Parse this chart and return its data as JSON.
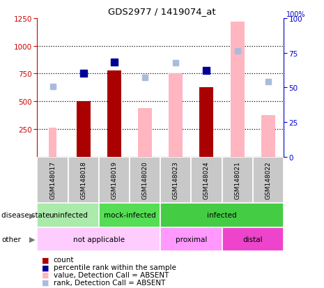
{
  "title": "GDS2977 / 1419074_at",
  "samples": [
    "GSM148017",
    "GSM148018",
    "GSM148019",
    "GSM148020",
    "GSM148023",
    "GSM148024",
    "GSM148021",
    "GSM148022"
  ],
  "count_values": [
    null,
    500,
    775,
    null,
    null,
    625,
    null,
    null
  ],
  "count_absent_values": [
    265,
    null,
    null,
    null,
    null,
    null,
    null,
    null
  ],
  "value_absent_bar": [
    null,
    null,
    null,
    435,
    750,
    null,
    1215,
    375
  ],
  "percentile_rank": [
    null,
    755,
    855,
    null,
    null,
    775,
    null,
    null
  ],
  "rank_absent": [
    635,
    null,
    null,
    715,
    845,
    null,
    955,
    680
  ],
  "ylim_left": [
    0,
    1250
  ],
  "ylim_right": [
    0,
    100
  ],
  "left_ticks": [
    250,
    500,
    750,
    1000,
    1250
  ],
  "right_ticks": [
    0,
    25,
    50,
    75,
    100
  ],
  "disease_state_groups": [
    {
      "label": "uninfected",
      "start": 0,
      "end": 2,
      "color": "#AAEAAA"
    },
    {
      "label": "mock-infected",
      "start": 2,
      "end": 4,
      "color": "#55DD55"
    },
    {
      "label": "infected",
      "start": 4,
      "end": 8,
      "color": "#44CC44"
    }
  ],
  "other_groups": [
    {
      "label": "not applicable",
      "start": 0,
      "end": 4,
      "color": "#FFCCFF"
    },
    {
      "label": "proximal",
      "start": 4,
      "end": 6,
      "color": "#FF99FF"
    },
    {
      "label": "distal",
      "start": 6,
      "end": 8,
      "color": "#EE44CC"
    }
  ],
  "bar_width": 0.45,
  "count_color": "#AA0000",
  "absent_bar_color": "#FFB6C1",
  "rank_color": "#000099",
  "rank_absent_color": "#AABBDD",
  "bg_color": "#FFFFFF"
}
